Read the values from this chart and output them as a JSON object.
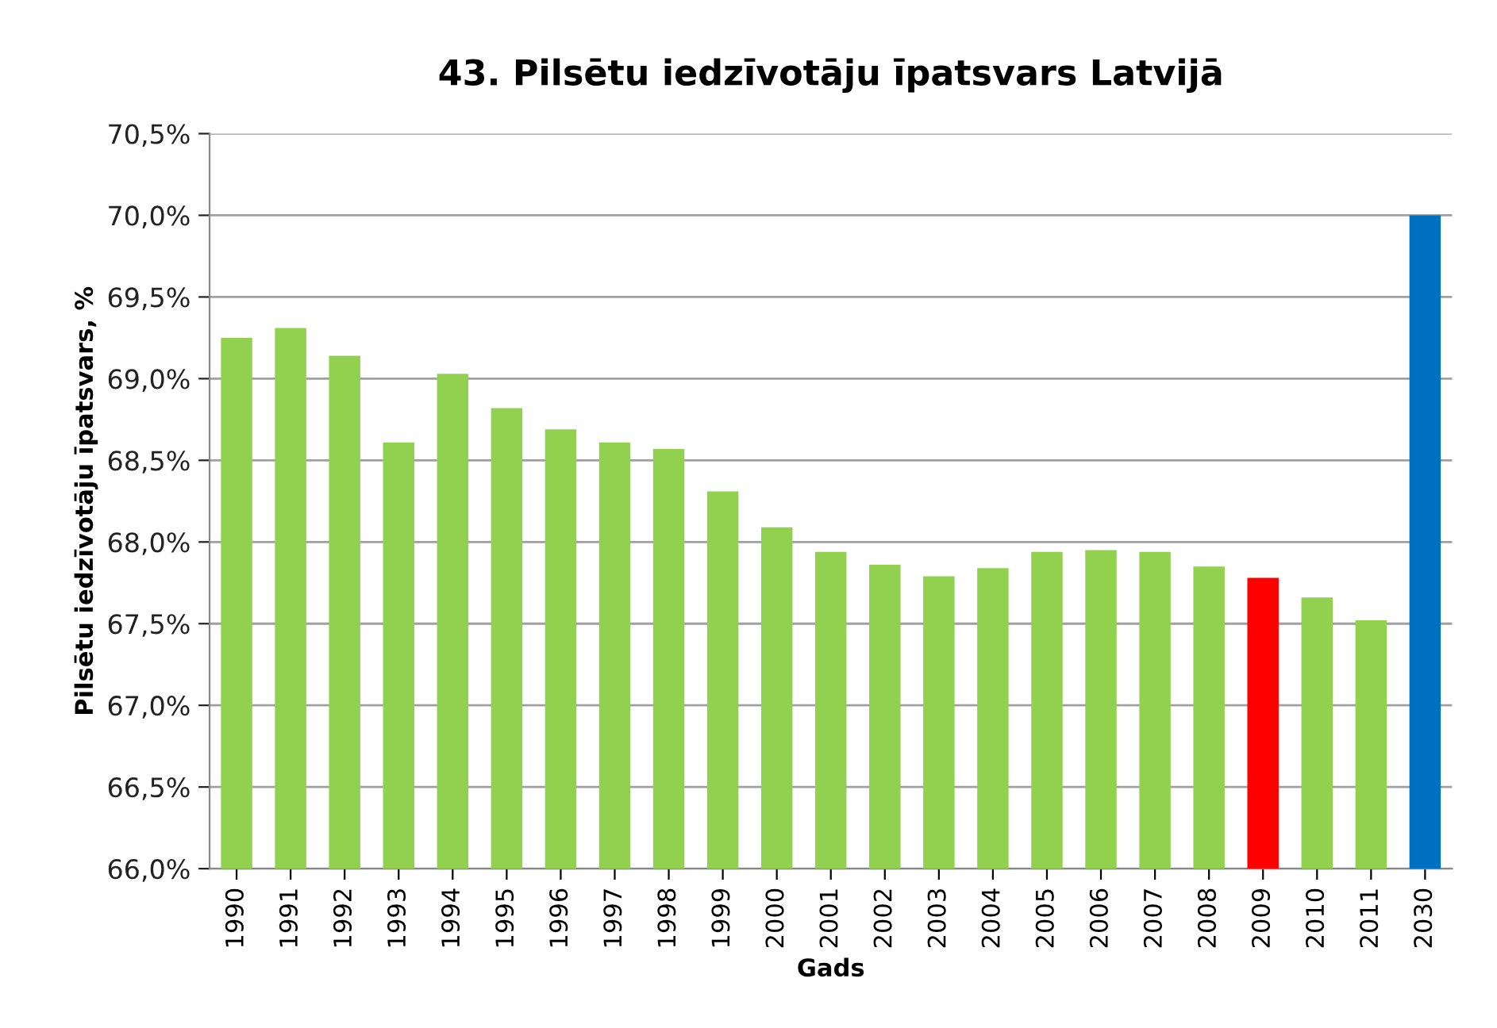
{
  "chart_data": {
    "type": "bar",
    "title": "43. Pilsētu iedzīvotāju īpatsvars Latvijā",
    "xlabel": "Gads",
    "ylabel": "Pilsētu iedzīvotāju īpatsvars, %",
    "categories": [
      "1990",
      "1991",
      "1992",
      "1993",
      "1994",
      "1995",
      "1996",
      "1997",
      "1998",
      "1999",
      "2000",
      "2001",
      "2002",
      "2003",
      "2004",
      "2005",
      "2006",
      "2007",
      "2008",
      "2009",
      "2010",
      "2011",
      "2030"
    ],
    "values": [
      69.25,
      69.31,
      69.14,
      68.61,
      69.03,
      68.82,
      68.69,
      68.61,
      68.57,
      68.31,
      68.09,
      67.94,
      67.86,
      67.79,
      67.84,
      67.94,
      67.95,
      67.94,
      67.85,
      67.78,
      67.66,
      67.52,
      70.0
    ],
    "colors": [
      "#92d050",
      "#92d050",
      "#92d050",
      "#92d050",
      "#92d050",
      "#92d050",
      "#92d050",
      "#92d050",
      "#92d050",
      "#92d050",
      "#92d050",
      "#92d050",
      "#92d050",
      "#92d050",
      "#92d050",
      "#92d050",
      "#92d050",
      "#92d050",
      "#92d050",
      "#ff0000",
      "#92d050",
      "#92d050",
      "#0070c0"
    ],
    "ylim": [
      66.0,
      70.5
    ],
    "yticks": [
      {
        "value": 66.0,
        "label": "66,0%"
      },
      {
        "value": 66.5,
        "label": "66,5%"
      },
      {
        "value": 67.0,
        "label": "67,0%"
      },
      {
        "value": 67.5,
        "label": "67,5%"
      },
      {
        "value": 68.0,
        "label": "68,0%"
      },
      {
        "value": 68.5,
        "label": "68,5%"
      },
      {
        "value": 69.0,
        "label": "69,0%"
      },
      {
        "value": 69.5,
        "label": "69,5%"
      },
      {
        "value": 70.0,
        "label": "70,0%"
      },
      {
        "value": 70.5,
        "label": "70,5%"
      }
    ],
    "grid": "y",
    "legend": false
  }
}
